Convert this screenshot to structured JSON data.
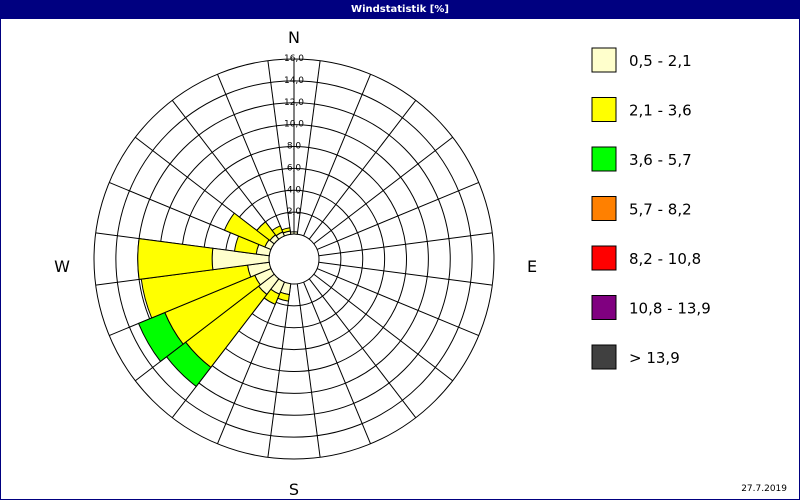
{
  "window": {
    "title": "Windstatistik [%]"
  },
  "footer": {
    "date": "27.7.2019"
  },
  "chart_data": {
    "type": "windrose",
    "title": "Windstatistik [%]",
    "unit": "%",
    "directions": [
      "N",
      "E",
      "S",
      "W"
    ],
    "radial_ticks": [
      "2,0",
      "4,0",
      "6,0",
      "8,0",
      "10,0",
      "12,0",
      "14,0",
      "16,0"
    ],
    "rlim": [
      0,
      16
    ],
    "sector_width_deg": 15,
    "grid": true,
    "legend_position": "right",
    "bins": [
      {
        "label": "0,5 - 2,1",
        "color": "#ffffcc"
      },
      {
        "label": "2,1 - 3,6",
        "color": "#ffff00"
      },
      {
        "label": "3,6 - 5,7",
        "color": "#00ff00"
      },
      {
        "label": "5,7 - 8,2",
        "color": "#ff8000"
      },
      {
        "label": "8,2 - 10,8",
        "color": "#ff0000"
      },
      {
        "label": "10,8 - 13,9",
        "color": "#800080"
      },
      {
        "label": "> 13,9",
        "color": "#404040"
      }
    ],
    "sectors": [
      {
        "direction_deg": 195,
        "values": [
          1.0,
          0.6
        ]
      },
      {
        "direction_deg": 210,
        "values": [
          1.2,
          1.0
        ]
      },
      {
        "direction_deg": 225,
        "values": [
          1.8,
          8.4,
          2.2
        ]
      },
      {
        "direction_deg": 240,
        "values": [
          1.6,
          8.9,
          2.6
        ]
      },
      {
        "direction_deg": 255,
        "values": [
          2.0,
          9.8
        ]
      },
      {
        "direction_deg": 270,
        "values": [
          5.2,
          6.8
        ]
      },
      {
        "direction_deg": 285,
        "values": [
          1.2,
          2.0
        ]
      },
      {
        "direction_deg": 300,
        "values": [
          0.6,
          4.0
        ]
      },
      {
        "direction_deg": 315,
        "values": [
          0.5,
          1.5
        ]
      },
      {
        "direction_deg": 330,
        "values": [
          0.4,
          0.6
        ]
      },
      {
        "direction_deg": 345,
        "values": [
          0.3,
          0.3
        ]
      },
      {
        "direction_deg": 0,
        "values": [
          0.2
        ]
      }
    ]
  }
}
